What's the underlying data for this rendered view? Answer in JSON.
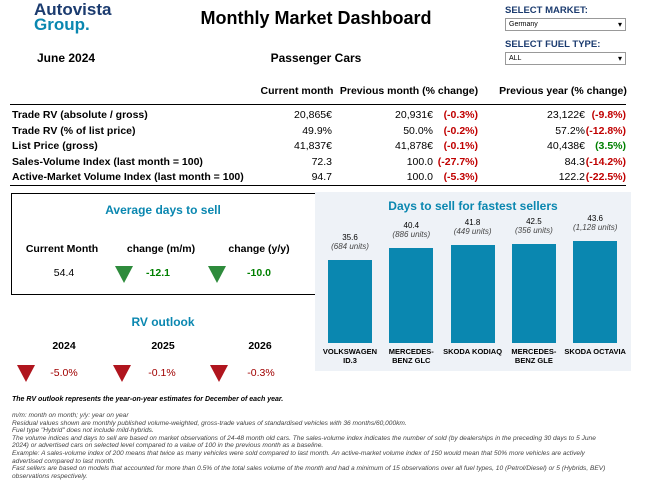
{
  "header": {
    "logo_line1": "Autovista",
    "logo_line2": "Group.",
    "title": "Monthly Market Dashboard",
    "date": "June 2024",
    "segment": "Passenger Cars"
  },
  "controls": [
    {
      "label": "SELECT MARKET:",
      "value": "Germany"
    },
    {
      "label": "SELECT FUEL TYPE:",
      "value": "ALL"
    }
  ],
  "table": {
    "columns": [
      "Current month",
      "Previous month (% change)",
      "Previous year (% change)"
    ],
    "rows": [
      [
        "Trade RV (absolute / gross)",
        "20,865€",
        "20,931€",
        "(-0.3%)",
        "23,122€",
        "(-9.8%)"
      ],
      [
        "Trade RV (% of list price)",
        "49.9%",
        "50.0%",
        "(-0.2%)",
        "57.2%",
        "(-12.8%)"
      ],
      [
        "List Price (gross)",
        "41,837€",
        "41,878€",
        "(-0.1%)",
        "40,438€",
        "(3.5%)"
      ],
      [
        "Sales-Volume Index (last month = 100)",
        "72.3",
        "100.0",
        "(-27.7%)",
        "84.3",
        "(-14.2%)"
      ],
      [
        "Active-Market Volume Index (last month = 100)",
        "94.7",
        "100.0",
        "(-5.3%)",
        "122.2",
        "(-22.5%)"
      ]
    ]
  },
  "days_to_sell": {
    "title": "Average days to sell",
    "items": [
      {
        "label": "Current Month",
        "value": "54.4"
      },
      {
        "label": "change (m/m)",
        "value": "-12.1"
      },
      {
        "label": "change (y/y)",
        "value": "-10.0"
      }
    ]
  },
  "rv_outlook": {
    "title": "RV outlook",
    "items": [
      {
        "label": "2024",
        "value": "-5.0%"
      },
      {
        "label": "2025",
        "value": "-0.1%"
      },
      {
        "label": "2026",
        "value": "-0.3%"
      }
    ]
  },
  "chart_data": {
    "type": "bar",
    "title": "Days to sell for fastest sellers",
    "categories": [
      "VOLKSWAGEN ID.3",
      "MERCEDES-BENZ GLC",
      "SKODA KODIAQ",
      "MERCEDES-BENZ GLE",
      "SKODA OCTAVIA"
    ],
    "values": [
      35.6,
      40.4,
      41.8,
      42.5,
      43.6
    ],
    "annotations": [
      "(684 units)",
      "(886 units)",
      "(449 units)",
      "(356 units)",
      "(1,128 units)"
    ],
    "color": "#0a87b0"
  },
  "footnotes": {
    "headline": "The RV outlook represents the year-on-year estimates for December of each year.",
    "lines": [
      "m/m: month on month; y/y: year on year",
      "Residual values shown are monthly published volume-weighted, gross-trade values of standardised vehicles with 36 months/60,000km.",
      "Fuel type \"Hybrid\" does not include mild-hybrids.",
      "The volume indices and days to sell are based on market observations of 24-48 month old cars. The sales-volume index indicates the number of sold (by dealerships in the preceding 30 days to 5 June 2024) or advertised cars on selected level compared to a value of 100 in the previous month as a baseline.",
      "Example: A sales-volume index of 200 means that twice as many vehicles were sold compared to last month. An active-market volume index of 150 would mean that 50% more vehicles are actively advertised compared to last month.",
      "Fast sellers are based on models that accounted for more than 0.5% of the total sales volume of the month and had a minimum of 15 observations over all fuel types, 10 (Petrol/Diesel) or 5 (Hybrids, BEV) observations respectively."
    ]
  }
}
